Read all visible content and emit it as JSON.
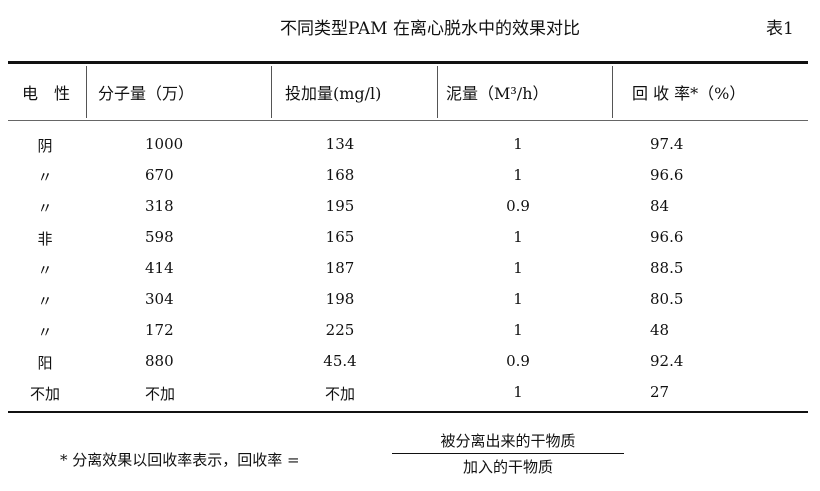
{
  "title": "不同类型PAM 在离心脱水中的效果对比",
  "table_number": "表1",
  "headers": [
    "电　性",
    "分子量（万）",
    "投加量(mg/l)",
    "泥量（M³/h）",
    "回 收 率*（%）"
  ],
  "rows": [
    [
      "阴",
      "1000",
      "134",
      "1",
      "97.4"
    ],
    [
      "〃",
      "670",
      "168",
      "1",
      "96.6"
    ],
    [
      "〃",
      "318",
      "195",
      "0.9",
      "84"
    ],
    [
      "非",
      "598",
      "165",
      "1",
      "96.6"
    ],
    [
      "〃",
      "414",
      "187",
      "1",
      "88.5"
    ],
    [
      "〃",
      "304",
      "198",
      "1",
      "80.5"
    ],
    [
      "〃",
      "172",
      "225",
      "1",
      "48"
    ],
    [
      "阳",
      "880",
      "45.4",
      "0.9",
      "92.4"
    ],
    [
      "不加",
      "不加",
      "不加",
      "1",
      "27"
    ]
  ],
  "footnote": {
    "text": "* 分离效果以回收率表示，回收率 =",
    "numerator": "被分离出来的干物质",
    "denominator": "加入的干物质"
  }
}
